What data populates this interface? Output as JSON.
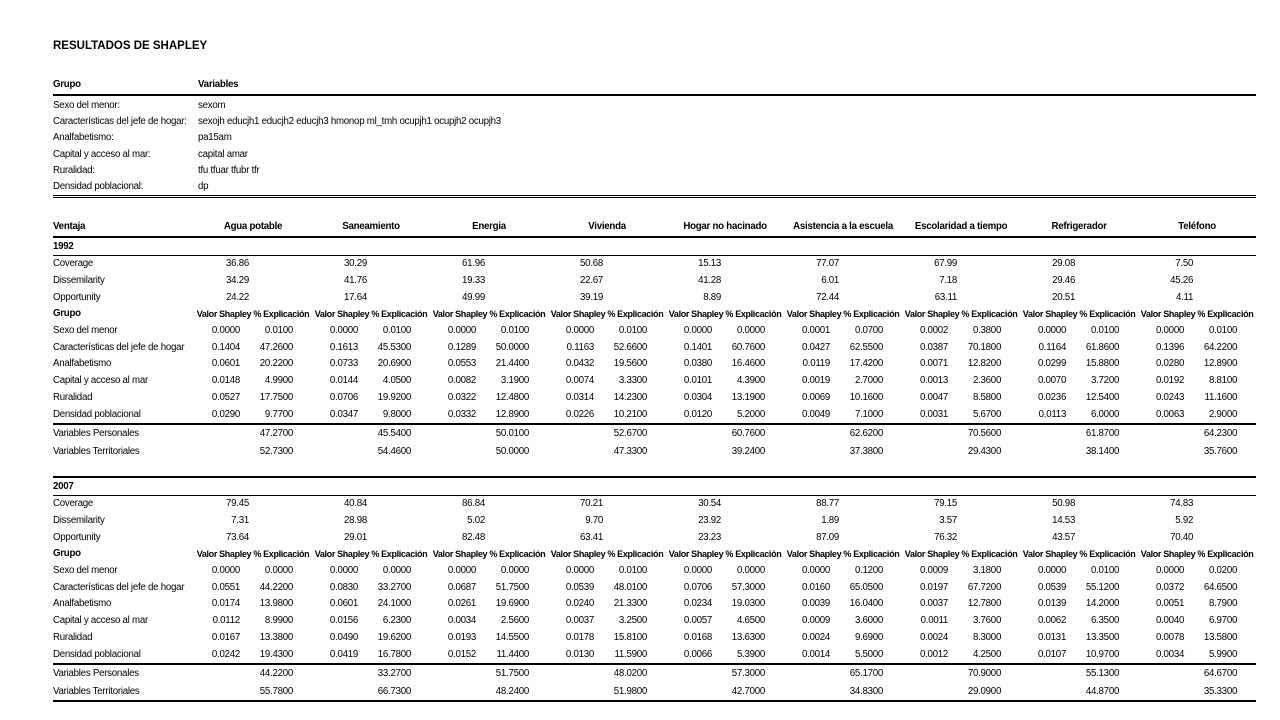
{
  "title": "RESULTADOS DE SHAPLEY",
  "groups_table": {
    "col_grupo": "Grupo",
    "col_variables": "Variables",
    "rows": [
      {
        "grupo": "Sexo del menor:",
        "variables": "sexom"
      },
      {
        "grupo": "Características del jefe de hogar:",
        "variables": "sexojh educjh1 educjh2 educjh3 hmonop ml_tmh ocupjh1 ocupjh2 ocupjh3"
      },
      {
        "grupo": "Analfabetismo:",
        "variables": "pa15am"
      },
      {
        "grupo": "Capital y acceso al mar:",
        "variables": "capital amar"
      },
      {
        "grupo": "Ruralidad:",
        "variables": "tfu tfuar tfubr tfr"
      },
      {
        "grupo": "Densidad poblacional:",
        "variables": "dp"
      }
    ]
  },
  "shapley_table": {
    "label_header": "Ventaja",
    "columns": [
      "Agua potable",
      "Saneamiento",
      "Energia",
      "Vivienda",
      "Hogar no hacinado",
      "Asistencia a la escuela",
      "Escolaridad a tiempo",
      "Refrigerador",
      "Teléfono"
    ],
    "value_subheader": "Valor Shapley",
    "pct_subheader": "% Explicación",
    "grupo_label": "Grupo",
    "sections": [
      {
        "year": "1992",
        "stats": [
          {
            "label": "Coverage",
            "values": [
              "36.86",
              "30.29",
              "61.96",
              "50.68",
              "15.13",
              "77.07",
              "67.99",
              "29.08",
              "7.50"
            ]
          },
          {
            "label": "Dissemilarity",
            "values": [
              "34.29",
              "41.76",
              "19.33",
              "22.67",
              "41.28",
              "6.01",
              "7.18",
              "29.46",
              "45.26"
            ]
          },
          {
            "label": "Opportunity",
            "values": [
              "24.22",
              "17.64",
              "49.99",
              "39.19",
              "8.89",
              "72.44",
              "63.11",
              "20.51",
              "4.11"
            ]
          }
        ],
        "groups": [
          {
            "label": "Sexo del menor",
            "valor": [
              "0.0000",
              "0.0000",
              "0.0000",
              "0.0000",
              "0.0000",
              "0.0001",
              "0.0002",
              "0.0000",
              "0.0000"
            ],
            "pct": [
              "0.0100",
              "0.0100",
              "0.0100",
              "0.0100",
              "0.0000",
              "0.0700",
              "0.3800",
              "0.0100",
              "0.0100"
            ]
          },
          {
            "label": "Características del jefe de hogar",
            "valor": [
              "0.1404",
              "0.1613",
              "0.1289",
              "0.1163",
              "0.1401",
              "0.0427",
              "0.0387",
              "0.1164",
              "0.1396"
            ],
            "pct": [
              "47.2600",
              "45.5300",
              "50.0000",
              "52.6600",
              "60.7600",
              "62.5500",
              "70.1800",
              "61.8600",
              "64.2200"
            ]
          },
          {
            "label": "Analfabetismo",
            "valor": [
              "0.0601",
              "0.0733",
              "0.0553",
              "0.0432",
              "0.0380",
              "0.0119",
              "0.0071",
              "0.0299",
              "0.0280"
            ],
            "pct": [
              "20.2200",
              "20.6900",
              "21.4400",
              "19.5600",
              "16.4600",
              "17.4200",
              "12.8200",
              "15.8800",
              "12.8900"
            ]
          },
          {
            "label": "Capital y acceso al mar",
            "valor": [
              "0.0148",
              "0.0144",
              "0.0082",
              "0.0074",
              "0.0101",
              "0.0019",
              "0.0013",
              "0.0070",
              "0.0192"
            ],
            "pct": [
              "4.9900",
              "4.0500",
              "3.1900",
              "3.3300",
              "4.3900",
              "2.7000",
              "2.3600",
              "3.7200",
              "8.8100"
            ]
          },
          {
            "label": "Ruralidad",
            "valor": [
              "0.0527",
              "0.0706",
              "0.0322",
              "0.0314",
              "0.0304",
              "0.0069",
              "0.0047",
              "0.0236",
              "0.0243"
            ],
            "pct": [
              "17.7500",
              "19.9200",
              "12.4800",
              "14.2300",
              "13.1900",
              "10.1600",
              "8.5800",
              "12.5400",
              "11.1600"
            ]
          },
          {
            "label": "Densidad poblacional",
            "valor": [
              "0.0290",
              "0.0347",
              "0.0332",
              "0.0226",
              "0.0120",
              "0.0049",
              "0.0031",
              "0.0113",
              "0.0063"
            ],
            "pct": [
              "9.7700",
              "9.8000",
              "12.8900",
              "10.2100",
              "5.2000",
              "7.1000",
              "5.6700",
              "6.0000",
              "2.9000"
            ]
          }
        ],
        "summaries": [
          {
            "label": "Variables Personales",
            "values": [
              "47.2700",
              "45.5400",
              "50.0100",
              "52.6700",
              "60.7600",
              "62.6200",
              "70.5600",
              "61.8700",
              "64.2300"
            ]
          },
          {
            "label": "Variables Territoriales",
            "values": [
              "52.7300",
              "54.4600",
              "50.0000",
              "47.3300",
              "39.2400",
              "37.3800",
              "29.4300",
              "38.1400",
              "35.7600"
            ]
          }
        ]
      },
      {
        "year": "2007",
        "stats": [
          {
            "label": "Coverage",
            "values": [
              "79.45",
              "40.84",
              "86.84",
              "70.21",
              "30.54",
              "88.77",
              "79.15",
              "50.98",
              "74.83"
            ]
          },
          {
            "label": "Dissemilarity",
            "values": [
              "7.31",
              "28.98",
              "5.02",
              "9.70",
              "23.92",
              "1.89",
              "3.57",
              "14.53",
              "5.92"
            ]
          },
          {
            "label": "Opportunity",
            "values": [
              "73.64",
              "29.01",
              "82.48",
              "63.41",
              "23.23",
              "87.09",
              "76.32",
              "43.57",
              "70.40"
            ]
          }
        ],
        "groups": [
          {
            "label": "Sexo del menor",
            "valor": [
              "0.0000",
              "0.0000",
              "0.0000",
              "0.0000",
              "0.0000",
              "0.0000",
              "0.0009",
              "0.0000",
              "0.0000"
            ],
            "pct": [
              "0.0000",
              "0.0000",
              "0.0000",
              "0.0100",
              "0.0000",
              "0.1200",
              "3.1800",
              "0.0100",
              "0.0200"
            ]
          },
          {
            "label": "Características del jefe de hogar",
            "valor": [
              "0.0551",
              "0.0830",
              "0.0687",
              "0.0539",
              "0.0706",
              "0.0160",
              "0.0197",
              "0.0539",
              "0.0372"
            ],
            "pct": [
              "44.2200",
              "33.2700",
              "51.7500",
              "48.0100",
              "57.3000",
              "65.0500",
              "67.7200",
              "55.1200",
              "64.6500"
            ]
          },
          {
            "label": "Analfabetismo",
            "valor": [
              "0.0174",
              "0.0601",
              "0.0261",
              "0.0240",
              "0.0234",
              "0.0039",
              "0.0037",
              "0.0139",
              "0.0051"
            ],
            "pct": [
              "13.9800",
              "24.1000",
              "19.6900",
              "21.3300",
              "19.0300",
              "16.0400",
              "12.7800",
              "14.2000",
              "8.7900"
            ]
          },
          {
            "label": "Capital y acceso al mar",
            "valor": [
              "0.0112",
              "0.0156",
              "0.0034",
              "0.0037",
              "0.0057",
              "0.0009",
              "0.0011",
              "0.0062",
              "0.0040"
            ],
            "pct": [
              "8.9900",
              "6.2300",
              "2.5600",
              "3.2500",
              "4.6500",
              "3.6000",
              "3.7600",
              "6.3500",
              "6.9700"
            ]
          },
          {
            "label": "Ruralidad",
            "valor": [
              "0.0167",
              "0.0490",
              "0.0193",
              "0.0178",
              "0.0168",
              "0.0024",
              "0.0024",
              "0.0131",
              "0.0078"
            ],
            "pct": [
              "13.3800",
              "19.6200",
              "14.5500",
              "15.8100",
              "13.6300",
              "9.6900",
              "8.3000",
              "13.3500",
              "13.5800"
            ]
          },
          {
            "label": "Densidad poblacional",
            "valor": [
              "0.0242",
              "0.0419",
              "0.0152",
              "0.0130",
              "0.0066",
              "0.0014",
              "0.0012",
              "0.0107",
              "0.0034"
            ],
            "pct": [
              "19.4300",
              "16.7800",
              "11.4400",
              "11.5900",
              "5.3900",
              "5.5000",
              "4.2500",
              "10.9700",
              "5.9900"
            ]
          }
        ],
        "summaries": [
          {
            "label": "Variables Personales",
            "values": [
              "44.2200",
              "33.2700",
              "51.7500",
              "48.0200",
              "57.3000",
              "65.1700",
              "70.9000",
              "55.1300",
              "64.6700"
            ]
          },
          {
            "label": "Variables Territoriales",
            "values": [
              "55.7800",
              "66.7300",
              "48.2400",
              "51.9800",
              "42.7000",
              "34.8300",
              "29.0900",
              "44.8700",
              "35.3300"
            ]
          }
        ]
      }
    ]
  }
}
